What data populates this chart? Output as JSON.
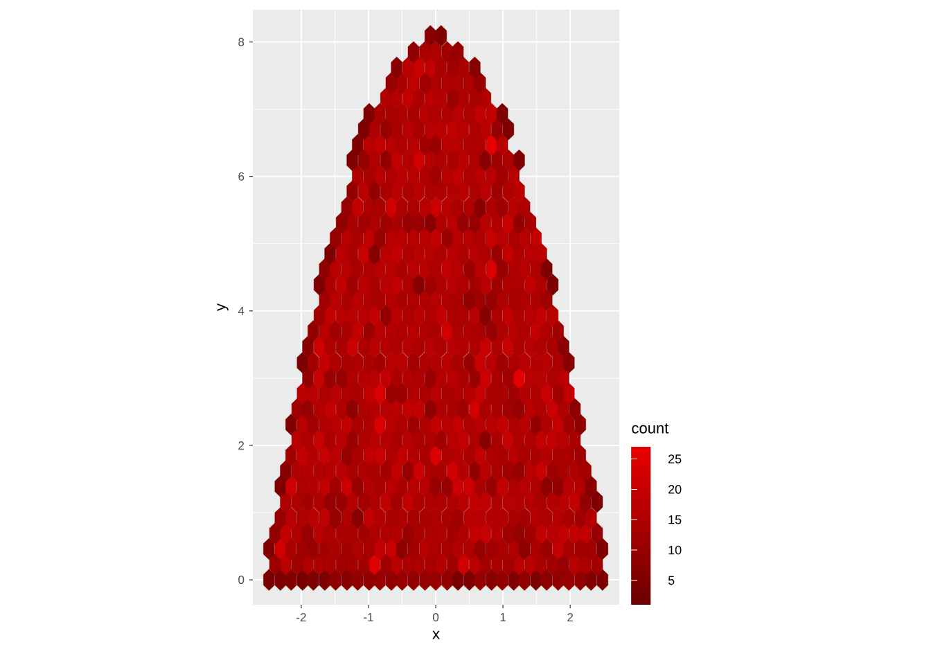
{
  "chart_data": {
    "type": "scatter",
    "xlabel": "x",
    "ylabel": "y",
    "clabel": "count",
    "xlim": [
      -2.72,
      2.73
    ],
    "ylim": [
      -0.37,
      8.48
    ],
    "xticks": [
      -2,
      -1,
      0,
      1,
      2
    ],
    "yticks": [
      0,
      2,
      4,
      6,
      8
    ],
    "clim": [
      1,
      27
    ],
    "cticks": [
      5,
      10,
      15,
      20,
      25
    ],
    "grid": true,
    "x": [
      -2.48,
      -2.31,
      -2.15,
      -1.98,
      -1.82,
      -1.65,
      -1.49,
      -1.32,
      -1.16,
      -0.99,
      -0.83,
      -0.66,
      -0.5,
      -0.33,
      -0.16,
      0,
      0.17,
      0.33,
      0.5,
      0.66,
      0.83,
      0.99,
      1.16,
      1.32,
      1.49,
      1.65,
      1.82,
      1.98,
      2.15,
      2.31,
      2.48,
      -2.39,
      -2.23,
      -2.06,
      -1.9,
      -1.73,
      -1.57,
      -1.4,
      -1.24,
      -1.07,
      -0.91,
      -0.74,
      -0.58,
      -0.41,
      -0.25,
      -0.08,
      0.08,
      0.25,
      0.41,
      0.58,
      0.74,
      0.91,
      1.08,
      1.24,
      1.41,
      1.57,
      1.74,
      1.9,
      2.07,
      2.23,
      2.4,
      -2.48,
      -2.31,
      -2.15,
      -1.98,
      -1.82,
      -1.65,
      -1.49,
      -1.32,
      -1.16,
      -0.99,
      -0.83,
      -0.66,
      -0.5,
      -0.33,
      -0.16,
      0,
      0.17,
      0.33,
      0.5,
      0.66,
      0.83,
      0.99,
      1.16,
      1.32,
      1.49,
      1.65,
      1.82,
      1.98,
      2.15,
      2.31,
      2.48,
      -2.39,
      -2.23,
      -2.06,
      -1.9,
      -1.73,
      -1.57,
      -1.4,
      -1.24,
      -1.07,
      -0.91,
      -0.74,
      -0.58,
      -0.41,
      -0.25,
      -0.08,
      0.08,
      0.25,
      0.41,
      0.58,
      0.74,
      0.91,
      1.08,
      1.24,
      1.41,
      1.57,
      1.74,
      1.9,
      2.07,
      2.23,
      2.4,
      -2.31,
      -2.15,
      -1.98,
      -1.82,
      -1.65,
      -1.49,
      -1.32,
      -1.16,
      -0.99,
      -0.83,
      -0.66,
      -0.5,
      -0.33,
      -0.16,
      0,
      0.17,
      0.33,
      0.5,
      0.66,
      0.83,
      0.99,
      1.16,
      1.32,
      1.49,
      1.65,
      1.82,
      1.98,
      2.15,
      2.31,
      -2.23,
      -2.06,
      -1.9,
      -1.73,
      -1.57,
      -1.4,
      -1.24,
      -1.07,
      -0.91,
      -0.74,
      -0.58,
      -0.41,
      -0.25,
      -0.08,
      0.08,
      0.25,
      0.41,
      0.58,
      0.74,
      0.91,
      1.08,
      1.24,
      1.41,
      1.57,
      1.74,
      1.9,
      2.07,
      2.23,
      2.4,
      -2.31,
      -2.15,
      -1.98,
      -1.82,
      -1.65,
      -1.49,
      -1.32,
      -1.16,
      -0.99,
      -0.83,
      -0.66,
      -0.5,
      -0.33,
      -0.16,
      0,
      0.17,
      0.33,
      0.5,
      0.66,
      0.83,
      0.99,
      1.16,
      1.32,
      1.49,
      1.65,
      1.82,
      1.98,
      2.15,
      2.31,
      -2.23,
      -2.06,
      -1.9,
      -1.73,
      -1.57,
      -1.4,
      -1.24,
      -1.07,
      -0.91,
      -0.74,
      -0.58,
      -0.41,
      -0.25,
      -0.08,
      0.08,
      0.25,
      0.41,
      0.58,
      0.74,
      0.91,
      1.08,
      1.24,
      1.41,
      1.57,
      1.74,
      1.9,
      2.07,
      2.23,
      -2.15,
      -1.98,
      -1.82,
      -1.65,
      -1.49,
      -1.32,
      -1.16,
      -0.99,
      -0.83,
      -0.66,
      -0.5,
      -0.33,
      -0.16,
      0,
      0.17,
      0.33,
      0.5,
      0.66,
      0.83,
      0.99,
      1.16,
      1.32,
      1.49,
      1.65,
      1.82,
      1.98,
      2.15,
      -2.06,
      -1.9,
      -1.73,
      -1.57,
      -1.4,
      -1.24,
      -1.07,
      -0.91,
      -0.74,
      -0.58,
      -0.41,
      -0.25,
      -0.08,
      0.08,
      0.25,
      0.41,
      0.58,
      0.74,
      0.91,
      1.08,
      1.24,
      1.41,
      1.57,
      1.74,
      1.9,
      2.07,
      -2.15,
      -1.98,
      -1.82,
      -1.65,
      -1.49,
      -1.32,
      -1.16,
      -0.99,
      -0.83,
      -0.66,
      -0.5,
      -0.33,
      -0.16,
      0,
      0.17,
      0.33,
      0.5,
      0.66,
      0.83,
      0.99,
      1.16,
      1.32,
      1.49,
      1.65,
      1.82,
      1.98,
      2.15,
      -2.06,
      -1.9,
      -1.73,
      -1.57,
      -1.4,
      -1.24,
      -1.07,
      -0.91,
      -0.74,
      -0.58,
      -0.41,
      -0.25,
      -0.08,
      0.08,
      0.25,
      0.41,
      0.58,
      0.74,
      0.91,
      1.08,
      1.24,
      1.41,
      1.57,
      1.74,
      1.9,
      2.07,
      -1.98,
      -1.82,
      -1.65,
      -1.49,
      -1.32,
      -1.16,
      -0.99,
      -0.83,
      -0.66,
      -0.5,
      -0.33,
      -0.16,
      0,
      0.17,
      0.33,
      0.5,
      0.66,
      0.83,
      0.99,
      1.16,
      1.32,
      1.49,
      1.65,
      1.82,
      1.98,
      -1.9,
      -1.73,
      -1.57,
      -1.4,
      -1.24,
      -1.07,
      -0.91,
      -0.74,
      -0.58,
      -0.41,
      -0.25,
      -0.08,
      0.08,
      0.25,
      0.41,
      0.58,
      0.74,
      0.91,
      1.08,
      1.24,
      1.41,
      1.57,
      1.74,
      1.9,
      -1.98,
      -1.82,
      -1.65,
      -1.49,
      -1.32,
      -1.16,
      -0.99,
      -0.83,
      -0.66,
      -0.5,
      -0.33,
      -0.16,
      0,
      0.17,
      0.33,
      0.5,
      0.66,
      0.83,
      0.99,
      1.16,
      1.32,
      1.49,
      1.65,
      1.82,
      1.98,
      -1.9,
      -1.73,
      -1.57,
      -1.4,
      -1.24,
      -1.07,
      -0.91,
      -0.74,
      -0.58,
      -0.41,
      -0.25,
      -0.08,
      0.08,
      0.25,
      0.41,
      0.58,
      0.74,
      0.91,
      1.08,
      1.24,
      1.41,
      1.57,
      1.74,
      1.9,
      -1.82,
      -1.65,
      -1.49,
      -1.32,
      -1.16,
      -0.99,
      -0.83,
      -0.66,
      -0.5,
      -0.33,
      -0.16,
      0,
      0.17,
      0.33,
      0.5,
      0.66,
      0.83,
      0.99,
      1.16,
      1.32,
      1.49,
      1.65,
      1.82,
      -1.73,
      -1.57,
      -1.4,
      -1.24,
      -1.07,
      -0.91,
      -0.74,
      -0.58,
      -0.41,
      -0.25,
      -0.08,
      0.08,
      0.25,
      0.41,
      0.58,
      0.74,
      0.91,
      1.08,
      1.24,
      1.41,
      1.57,
      1.74,
      -1.65,
      -1.49,
      -1.32,
      -1.16,
      -0.99,
      -0.83,
      -0.66,
      -0.5,
      -0.33,
      -0.16,
      0,
      0.17,
      0.33,
      0.5,
      0.66,
      0.83,
      0.99,
      1.16,
      1.32,
      1.49,
      1.65,
      -1.73,
      -1.57,
      -1.4,
      -1.24,
      -1.07,
      -0.91,
      -0.74,
      -0.58,
      -0.41,
      -0.25,
      -0.08,
      0.08,
      0.25,
      0.41,
      0.58,
      0.74,
      0.91,
      1.08,
      1.24,
      1.41,
      1.57,
      1.74,
      -1.65,
      -1.49,
      -1.32,
      -1.16,
      -0.99,
      -0.83,
      -0.66,
      -0.5,
      -0.33,
      -0.16,
      0,
      0.17,
      0.33,
      0.5,
      0.66,
      0.83,
      0.99,
      1.16,
      1.32,
      1.49,
      1.65,
      -1.57,
      -1.4,
      -1.24,
      -1.07,
      -0.91,
      -0.74,
      -0.58,
      -0.41,
      -0.25,
      -0.08,
      0.08,
      0.25,
      0.41,
      0.58,
      0.74,
      0.91,
      1.08,
      1.24,
      1.41,
      1.57,
      -1.49,
      -1.32,
      -1.16,
      -0.99,
      -0.83,
      -0.66,
      -0.5,
      -0.33,
      -0.16,
      0,
      0.17,
      0.33,
      0.5,
      0.66,
      0.83,
      0.99,
      1.16,
      1.32,
      1.49,
      -1.4,
      -1.24,
      -1.07,
      -0.91,
      -0.74,
      -0.58,
      -0.41,
      -0.25,
      -0.08,
      0.08,
      0.25,
      0.41,
      0.58,
      0.74,
      0.91,
      1.08,
      1.24,
      1.41,
      -1.32,
      -1.16,
      -0.99,
      -0.83,
      -0.66,
      -0.5,
      -0.33,
      -0.16,
      0,
      0.17,
      0.33,
      0.5,
      0.66,
      0.83,
      0.99,
      1.16,
      1.32,
      -1.24,
      -1.07,
      -0.91,
      -0.74,
      -0.58,
      -0.41,
      -0.25,
      -0.08,
      0.08,
      0.25,
      0.41,
      0.58,
      0.74,
      0.91,
      1.08,
      1.24,
      -1.16,
      -0.99,
      -0.83,
      -0.66,
      -0.5,
      -0.33,
      -0.16,
      0,
      0.17,
      0.33,
      0.5,
      0.66,
      0.83,
      0.99,
      1.16,
      -1.24,
      -1.07,
      -0.91,
      -0.74,
      -0.58,
      -0.41,
      -0.25,
      -0.08,
      0.08,
      0.25,
      0.41,
      0.58,
      0.74,
      0.91,
      1.08,
      1.24,
      -1.16,
      -0.99,
      -0.83,
      -0.66,
      -0.5,
      -0.33,
      -0.16,
      0,
      0.17,
      0.33,
      0.5,
      0.66,
      0.83,
      0.99,
      -1.07,
      -0.91,
      -0.74,
      -0.58,
      -0.41,
      -0.25,
      -0.08,
      0.08,
      0.25,
      0.41,
      0.58,
      0.74,
      0.91,
      1.08,
      -0.99,
      -0.83,
      -0.66,
      -0.5,
      -0.33,
      -0.16,
      0,
      0.17,
      0.33,
      0.5,
      0.66,
      0.83,
      0.99,
      -0.74,
      -0.58,
      -0.41,
      -0.25,
      -0.08,
      0.08,
      0.25,
      0.41,
      0.58,
      0.74,
      -0.66,
      -0.5,
      -0.33,
      -0.16,
      0,
      0.17,
      0.33,
      0.5,
      0.66,
      -0.58,
      -0.41,
      -0.25,
      -0.08,
      0.08,
      0.25,
      0.41,
      0.58,
      -0.33,
      -0.16,
      0,
      0.17,
      0.33,
      -0.08,
      0.08
    ],
    "values": [
      0,
      0,
      0,
      0,
      0,
      0,
      0,
      0,
      0,
      0,
      0,
      0,
      0,
      0,
      0,
      0,
      0,
      0,
      0,
      0,
      0,
      0,
      0,
      0,
      0,
      0,
      0,
      0,
      0,
      0,
      0,
      0.23,
      0.23,
      0.23,
      0.23,
      0.23,
      0.23,
      0.23,
      0.23,
      0.23,
      0.23,
      0.23,
      0.23,
      0.23,
      0.23,
      0.23,
      0.23,
      0.23,
      0.23,
      0.23,
      0.23,
      0.23,
      0.23,
      0.23,
      0.23,
      0.23,
      0.23,
      0.23,
      0.23,
      0.23,
      0.23,
      0.46,
      0.46,
      0.46,
      0.46,
      0.46,
      0.46,
      0.46,
      0.46,
      0.46,
      0.46,
      0.46,
      0.46,
      0.46,
      0.46,
      0.46,
      0.46,
      0.46,
      0.46,
      0.46,
      0.46,
      0.46,
      0.46,
      0.46,
      0.46,
      0.46,
      0.46,
      0.46,
      0.46,
      0.46,
      0.46,
      0.46,
      0.69,
      0.69,
      0.69,
      0.69,
      0.69,
      0.69,
      0.69,
      0.69,
      0.69,
      0.69,
      0.69,
      0.69,
      0.69,
      0.69,
      0.69,
      0.69,
      0.69,
      0.69,
      0.69,
      0.69,
      0.69,
      0.69,
      0.69,
      0.69,
      0.69,
      0.69,
      0.69,
      0.69,
      0.69,
      0.69,
      0.92,
      0.92,
      0.92,
      0.92,
      0.92,
      0.92,
      0.92,
      0.92,
      0.92,
      0.92,
      0.92,
      0.92,
      0.92,
      0.92,
      0.92,
      0.92,
      0.92,
      0.92,
      0.92,
      0.92,
      0.92,
      0.92,
      0.92,
      0.92,
      0.92,
      0.92,
      0.92,
      0.92,
      0.92,
      1.16,
      1.16,
      1.16,
      1.16,
      1.16,
      1.16,
      1.16,
      1.16,
      1.16,
      1.16,
      1.16,
      1.16,
      1.16,
      1.16,
      1.16,
      1.16,
      1.16,
      1.16,
      1.16,
      1.16,
      1.16,
      1.16,
      1.16,
      1.16,
      1.16,
      1.16,
      1.16,
      1.16,
      1.16,
      1.39,
      1.39,
      1.39,
      1.39,
      1.39,
      1.39,
      1.39,
      1.39,
      1.39,
      1.39,
      1.39,
      1.39,
      1.39,
      1.39,
      1.39,
      1.39,
      1.39,
      1.39,
      1.39,
      1.39,
      1.39,
      1.39,
      1.39,
      1.39,
      1.39,
      1.39,
      1.39,
      1.39,
      1.39,
      1.62,
      1.62,
      1.62,
      1.62,
      1.62,
      1.62,
      1.62,
      1.62,
      1.62,
      1.62,
      1.62,
      1.62,
      1.62,
      1.62,
      1.62,
      1.62,
      1.62,
      1.62,
      1.62,
      1.62,
      1.62,
      1.62,
      1.62,
      1.62,
      1.62,
      1.62,
      1.62,
      1.62,
      1.85,
      1.85,
      1.85,
      1.85,
      1.85,
      1.85,
      1.85,
      1.85,
      1.85,
      1.85,
      1.85,
      1.85,
      1.85,
      1.85,
      1.85,
      1.85,
      1.85,
      1.85,
      1.85,
      1.85,
      1.85,
      1.85,
      1.85,
      1.85,
      1.85,
      1.85,
      1.85,
      2.08,
      2.08,
      2.08,
      2.08,
      2.08,
      2.08,
      2.08,
      2.08,
      2.08,
      2.08,
      2.08,
      2.08,
      2.08,
      2.08,
      2.08,
      2.08,
      2.08,
      2.08,
      2.08,
      2.08,
      2.08,
      2.08,
      2.08,
      2.08,
      2.08,
      2.08,
      2.31,
      2.31,
      2.31,
      2.31,
      2.31,
      2.31,
      2.31,
      2.31,
      2.31,
      2.31,
      2.31,
      2.31,
      2.31,
      2.31,
      2.31,
      2.31,
      2.31,
      2.31,
      2.31,
      2.31,
      2.31,
      2.31,
      2.31,
      2.31,
      2.31,
      2.31,
      2.31,
      2.54,
      2.54,
      2.54,
      2.54,
      2.54,
      2.54,
      2.54,
      2.54,
      2.54,
      2.54,
      2.54,
      2.54,
      2.54,
      2.54,
      2.54,
      2.54,
      2.54,
      2.54,
      2.54,
      2.54,
      2.54,
      2.54,
      2.54,
      2.54,
      2.54,
      2.54,
      2.77,
      2.77,
      2.77,
      2.77,
      2.77,
      2.77,
      2.77,
      2.77,
      2.77,
      2.77,
      2.77,
      2.77,
      2.77,
      2.77,
      2.77,
      2.77,
      2.77,
      2.77,
      2.77,
      2.77,
      2.77,
      2.77,
      2.77,
      2.77,
      2.77,
      3.0,
      3.0,
      3.0,
      3.0,
      3.0,
      3.0,
      3.0,
      3.0,
      3.0,
      3.0,
      3.0,
      3.0,
      3.0,
      3.0,
      3.0,
      3.0,
      3.0,
      3.0,
      3.0,
      3.0,
      3.0,
      3.0,
      3.0,
      3.0,
      3.23,
      3.23,
      3.23,
      3.23,
      3.23,
      3.23,
      3.23,
      3.23,
      3.23,
      3.23,
      3.23,
      3.23,
      3.23,
      3.23,
      3.23,
      3.23,
      3.23,
      3.23,
      3.23,
      3.23,
      3.23,
      3.23,
      3.23,
      3.23,
      3.23,
      3.47,
      3.47,
      3.47,
      3.47,
      3.47,
      3.47,
      3.47,
      3.47,
      3.47,
      3.47,
      3.47,
      3.47,
      3.47,
      3.47,
      3.47,
      3.47,
      3.47,
      3.47,
      3.47,
      3.47,
      3.47,
      3.47,
      3.47,
      3.47,
      3.7,
      3.7,
      3.7,
      3.7,
      3.7,
      3.7,
      3.7,
      3.7,
      3.7,
      3.7,
      3.7,
      3.7,
      3.7,
      3.7,
      3.7,
      3.7,
      3.7,
      3.7,
      3.7,
      3.7,
      3.7,
      3.7,
      3.7,
      3.93,
      3.93,
      3.93,
      3.93,
      3.93,
      3.93,
      3.93,
      3.93,
      3.93,
      3.93,
      3.93,
      3.93,
      3.93,
      3.93,
      3.93,
      3.93,
      3.93,
      3.93,
      3.93,
      3.93,
      3.93,
      3.93,
      4.16,
      4.16,
      4.16,
      4.16,
      4.16,
      4.16,
      4.16,
      4.16,
      4.16,
      4.16,
      4.16,
      4.16,
      4.16,
      4.16,
      4.16,
      4.16,
      4.16,
      4.16,
      4.16,
      4.16,
      4.16,
      4.39,
      4.39,
      4.39,
      4.39,
      4.39,
      4.39,
      4.39,
      4.39,
      4.39,
      4.39,
      4.39,
      4.39,
      4.39,
      4.39,
      4.39,
      4.39,
      4.39,
      4.39,
      4.39,
      4.39,
      4.39,
      4.39,
      4.62,
      4.62,
      4.62,
      4.62,
      4.62,
      4.62,
      4.62,
      4.62,
      4.62,
      4.62,
      4.62,
      4.62,
      4.62,
      4.62,
      4.62,
      4.62,
      4.62,
      4.62,
      4.62,
      4.62,
      4.62,
      4.85,
      4.85,
      4.85,
      4.85,
      4.85,
      4.85,
      4.85,
      4.85,
      4.85,
      4.85,
      4.85,
      4.85,
      4.85,
      4.85,
      4.85,
      4.85,
      4.85,
      4.85,
      4.85,
      4.85,
      5.08,
      5.08,
      5.08,
      5.08,
      5.08,
      5.08,
      5.08,
      5.08,
      5.08,
      5.08,
      5.08,
      5.08,
      5.08,
      5.08,
      5.08,
      5.08,
      5.08,
      5.08,
      5.08,
      5.31,
      5.31,
      5.31,
      5.31,
      5.31,
      5.31,
      5.31,
      5.31,
      5.31,
      5.31,
      5.31,
      5.31,
      5.31,
      5.31,
      5.31,
      5.31,
      5.31,
      5.31,
      5.54,
      5.54,
      5.54,
      5.54,
      5.54,
      5.54,
      5.54,
      5.54,
      5.54,
      5.54,
      5.54,
      5.54,
      5.54,
      5.54,
      5.54,
      5.54,
      5.54,
      5.78,
      5.78,
      5.78,
      5.78,
      5.78,
      5.78,
      5.78,
      5.78,
      5.78,
      5.78,
      5.78,
      5.78,
      5.78,
      5.78,
      5.78,
      5.78,
      6.01,
      6.01,
      6.01,
      6.01,
      6.01,
      6.01,
      6.01,
      6.01,
      6.01,
      6.01,
      6.01,
      6.01,
      6.01,
      6.01,
      6.01,
      6.24,
      6.24,
      6.24,
      6.24,
      6.24,
      6.24,
      6.24,
      6.24,
      6.24,
      6.24,
      6.24,
      6.24,
      6.24,
      6.24,
      6.24,
      6.24,
      6.47,
      6.47,
      6.47,
      6.47,
      6.47,
      6.47,
      6.47,
      6.47,
      6.47,
      6.47,
      6.47,
      6.47,
      6.47,
      6.47,
      6.7,
      6.7,
      6.7,
      6.7,
      6.7,
      6.7,
      6.7,
      6.7,
      6.7,
      6.7,
      6.7,
      6.7,
      6.7,
      6.7,
      6.93,
      6.93,
      6.93,
      6.93,
      6.93,
      6.93,
      6.93,
      6.93,
      6.93,
      6.93,
      6.93,
      6.93,
      6.93,
      7.16,
      7.16,
      7.16,
      7.16,
      7.16,
      7.16,
      7.16,
      7.16,
      7.16,
      7.16,
      7.39,
      7.39,
      7.39,
      7.39,
      7.39,
      7.39,
      7.39,
      7.39,
      7.39,
      7.62,
      7.62,
      7.62,
      7.62,
      7.62,
      7.62,
      7.62,
      7.62,
      7.85,
      7.85,
      7.85,
      7.85,
      7.85,
      8.09,
      8.09
    ],
    "cvalues": [
      4,
      5,
      6,
      4,
      5,
      5,
      8,
      7,
      9,
      9,
      10,
      9,
      10,
      9,
      10,
      10,
      9,
      4,
      5,
      10,
      7,
      9,
      6,
      9,
      5,
      8,
      9,
      10,
      9,
      6,
      5,
      11,
      17,
      12,
      15,
      14,
      14,
      12,
      13,
      13,
      25,
      12,
      17,
      14,
      15,
      14,
      16,
      12,
      22,
      17,
      13,
      14,
      13,
      17,
      17,
      14,
      13,
      10,
      17,
      14,
      13,
      5,
      22,
      14,
      12,
      11,
      13,
      14,
      13,
      15,
      14,
      19,
      20,
      8,
      13,
      17,
      15,
      14,
      16,
      15,
      10,
      12,
      14,
      15,
      8,
      14,
      11,
      19,
      14,
      13,
      12,
      5,
      9,
      19,
      15,
      10,
      17,
      14,
      14,
      14,
      13,
      15,
      15,
      16,
      10,
      14,
      15,
      15,
      13,
      15,
      19,
      20,
      16,
      12,
      10,
      13,
      19,
      17,
      19,
      19,
      19,
      10,
      11,
      17,
      15,
      17,
      18,
      10,
      15,
      7,
      19,
      16,
      14,
      15,
      14,
      14,
      15,
      14,
      12,
      17,
      17,
      16,
      16,
      14,
      13,
      16,
      15,
      16,
      14,
      12,
      16,
      15,
      15,
      13,
      15,
      10,
      11,
      16,
      13,
      15,
      19,
      13,
      19,
      15,
      15,
      15,
      15,
      17,
      19,
      19,
      15,
      17,
      16,
      16,
      14,
      16,
      17,
      19,
      9,
      5,
      5,
      21,
      15,
      16,
      19,
      12,
      21,
      10,
      16,
      14,
      17,
      14,
      17,
      17,
      11,
      10,
      21,
      21,
      14,
      10,
      19,
      15,
      17,
      15,
      8,
      9,
      17,
      16,
      7,
      7,
      15,
      16,
      15,
      16,
      17,
      14,
      15,
      14,
      13,
      19,
      10,
      21,
      14,
      14,
      22,
      16,
      9,
      17,
      14,
      12,
      10,
      17,
      20,
      12,
      14,
      15,
      13,
      12,
      19,
      16,
      20,
      17,
      10,
      14,
      19,
      20,
      15,
      19,
      16,
      14,
      24,
      15,
      16,
      14,
      19,
      15,
      14,
      17,
      14,
      14,
      16,
      14,
      14,
      12,
      17,
      15,
      20,
      14,
      17,
      11,
      15,
      17,
      16,
      14,
      17,
      14,
      15,
      12,
      17,
      19,
      15,
      7,
      14,
      20,
      15,
      15,
      19,
      19,
      17,
      14,
      5,
      17,
      12,
      16,
      17,
      19,
      14,
      15,
      24,
      17,
      15,
      12,
      15,
      19,
      17,
      19,
      15,
      17,
      17,
      19,
      15,
      17,
      9,
      15,
      19,
      12,
      9,
      12,
      10,
      16,
      19,
      15,
      8,
      15,
      16,
      17,
      17,
      19,
      19,
      8,
      15,
      14,
      12,
      22,
      14,
      14,
      12,
      10,
      17,
      15,
      20,
      15,
      8,
      17,
      17,
      15,
      17,
      15,
      14,
      19,
      24,
      11,
      11,
      16,
      14,
      17,
      14,
      15,
      16,
      20,
      14,
      14,
      12,
      16,
      15,
      20,
      12,
      19,
      9,
      20,
      11,
      10,
      15,
      16,
      17,
      19,
      14,
      16,
      15,
      10,
      16,
      17,
      14,
      11,
      21,
      14,
      12,
      26,
      17,
      17,
      15,
      17,
      5,
      13,
      19,
      15,
      14,
      15,
      14,
      13,
      17,
      17,
      13,
      15,
      16,
      17,
      14,
      11,
      20,
      17,
      12,
      15,
      17,
      16,
      17,
      14,
      7,
      7,
      22,
      15,
      14,
      21,
      15,
      17,
      16,
      15,
      17,
      15,
      17,
      15,
      17,
      16,
      15,
      20,
      15,
      20,
      15,
      17,
      15,
      14,
      7,
      9,
      17,
      12,
      14,
      19,
      11,
      17,
      16,
      15,
      17,
      15,
      14,
      22,
      15,
      15,
      14,
      10,
      15,
      17,
      15,
      19,
      15,
      12,
      12,
      19,
      17,
      17,
      17,
      19,
      9,
      17,
      15,
      17,
      15,
      19,
      15,
      15,
      17,
      7,
      15,
      19,
      15,
      17,
      19,
      17,
      12,
      17,
      14,
      17,
      15,
      14,
      16,
      14,
      15,
      15,
      17,
      15,
      14,
      9,
      12,
      10,
      15,
      14,
      15,
      14,
      12,
      5,
      14,
      19,
      12,
      17,
      14,
      17,
      19,
      15,
      7,
      12,
      15,
      17,
      15,
      13,
      17,
      12,
      15,
      15,
      19,
      15,
      5,
      9,
      17,
      17,
      14,
      15,
      17,
      17,
      14,
      17,
      17,
      15,
      19,
      17,
      11,
      17,
      24,
      10,
      15,
      17,
      15,
      5,
      5,
      17,
      14,
      20,
      7,
      17,
      19,
      15,
      17,
      17,
      15,
      17,
      15,
      17,
      15,
      11,
      19,
      15,
      17,
      17,
      10,
      17,
      14,
      19,
      10,
      17,
      17,
      17,
      17,
      19,
      11,
      17,
      17,
      15,
      20,
      17,
      14,
      17,
      19,
      9,
      14,
      12,
      15,
      12,
      14,
      10,
      11,
      7,
      15,
      17,
      10,
      10,
      17,
      16,
      20,
      9,
      14,
      10,
      19,
      15,
      14,
      22,
      15,
      15,
      17,
      21,
      17,
      14,
      15,
      7,
      15,
      12,
      17,
      15,
      9,
      17,
      9,
      14,
      17,
      15,
      17,
      15,
      15,
      16,
      17,
      15,
      17,
      12,
      15,
      17,
      15,
      14,
      17,
      15,
      17,
      17,
      15,
      12,
      17,
      19,
      15,
      17,
      17,
      12,
      17,
      5,
      10,
      15,
      9,
      19,
      16,
      22,
      16,
      15,
      14,
      17,
      15,
      7,
      12,
      15,
      5,
      5,
      17,
      19,
      17,
      15,
      17,
      12,
      11,
      17,
      17,
      15,
      15,
      27,
      17,
      5,
      15,
      10,
      14,
      17,
      14,
      17,
      17,
      19,
      17,
      15,
      17,
      10,
      5,
      5,
      14,
      14,
      15,
      14,
      17,
      15,
      15,
      17,
      15,
      19,
      19,
      5,
      15,
      16,
      19,
      14,
      17,
      16,
      11,
      15,
      14,
      15,
      10,
      14,
      19,
      12,
      15,
      15,
      15,
      15,
      10,
      7,
      17,
      20,
      19,
      14,
      12,
      14,
      7,
      9,
      14,
      15,
      12,
      10,
      7,
      5
    ]
  }
}
